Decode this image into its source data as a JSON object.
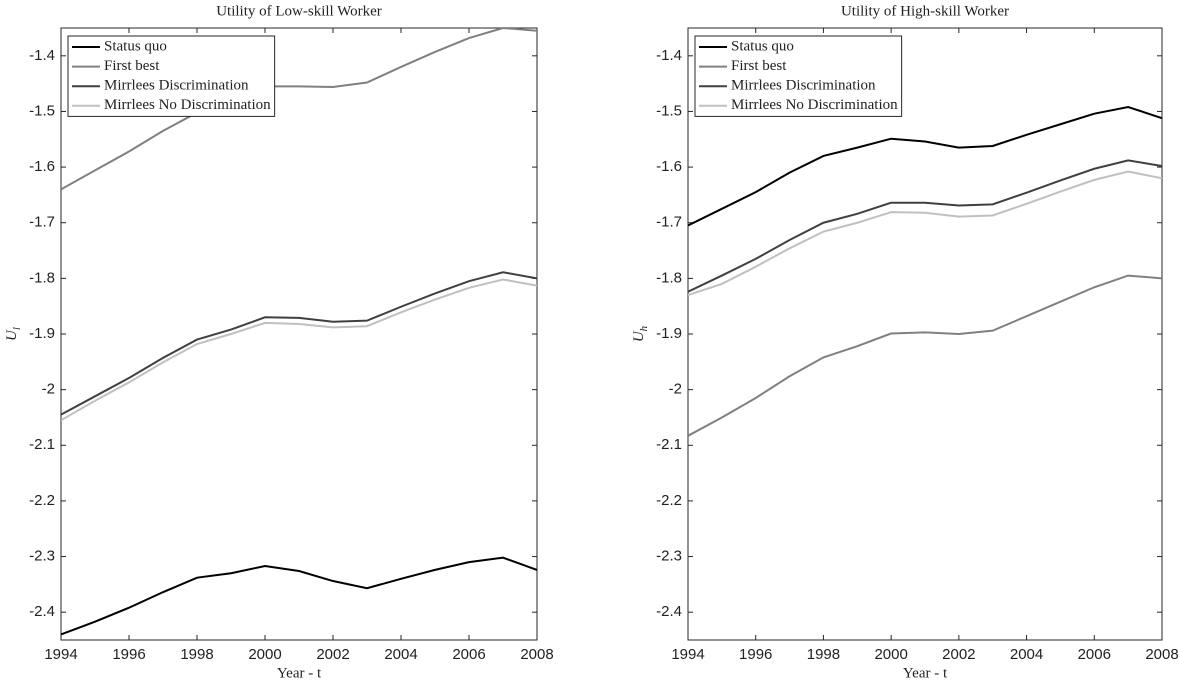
{
  "chart_data": [
    {
      "type": "line",
      "title": "Utility of Low-skill Worker",
      "xlabel": "Year - t",
      "ylabel": "U",
      "ylabel_subscript": "l",
      "x": [
        1994,
        1995,
        1996,
        1997,
        1998,
        1999,
        2000,
        2001,
        2002,
        2003,
        2004,
        2005,
        2006,
        2007,
        2008
      ],
      "xlim": [
        1994,
        2008
      ],
      "xticks": [
        1994,
        1996,
        1998,
        2000,
        2002,
        2004,
        2006,
        2008
      ],
      "ylim": [
        -2.45,
        -1.35
      ],
      "yticks": [
        -2.4,
        -2.3,
        -2.2,
        -2.1,
        -2,
        -1.9,
        -1.8,
        -1.7,
        -1.6,
        -1.5,
        -1.4
      ],
      "legend": "upper-left",
      "series": [
        {
          "name": "Status quo",
          "color": "#000000",
          "values": [
            -2.44,
            -2.417,
            -2.392,
            -2.364,
            -2.338,
            -2.33,
            -2.317,
            -2.326,
            -2.344,
            -2.357,
            -2.34,
            -2.324,
            -2.31,
            -2.302,
            -2.324
          ]
        },
        {
          "name": "First best",
          "color": "#808080",
          "values": [
            -1.64,
            -1.606,
            -1.572,
            -1.535,
            -1.502,
            -1.48,
            -1.455,
            -1.455,
            -1.456,
            -1.448,
            -1.42,
            -1.393,
            -1.368,
            -1.35,
            -1.355
          ]
        },
        {
          "name": "Mirrlees Discrimination",
          "color": "#404040",
          "values": [
            -2.045,
            -2.012,
            -1.979,
            -1.943,
            -1.91,
            -1.892,
            -1.87,
            -1.871,
            -1.878,
            -1.876,
            -1.851,
            -1.827,
            -1.805,
            -1.789,
            -1.8
          ]
        },
        {
          "name": "Mirrlees No Discrimination",
          "color": "#c0c0c0",
          "values": [
            -2.055,
            -2.02,
            -1.987,
            -1.951,
            -1.918,
            -1.9,
            -1.88,
            -1.882,
            -1.888,
            -1.886,
            -1.861,
            -1.838,
            -1.817,
            -1.802,
            -1.813
          ]
        }
      ]
    },
    {
      "type": "line",
      "title": "Utility of High-skill Worker",
      "xlabel": "Year - t",
      "ylabel": "U",
      "ylabel_subscript": "h",
      "x": [
        1994,
        1995,
        1996,
        1997,
        1998,
        1999,
        2000,
        2001,
        2002,
        2003,
        2004,
        2005,
        2006,
        2007,
        2008
      ],
      "xlim": [
        1994,
        2008
      ],
      "xticks": [
        1994,
        1996,
        1998,
        2000,
        2002,
        2004,
        2006,
        2008
      ],
      "ylim": [
        -2.45,
        -1.35
      ],
      "yticks": [
        -2.4,
        -2.3,
        -2.2,
        -2.1,
        -2,
        -1.9,
        -1.8,
        -1.7,
        -1.6,
        -1.5,
        -1.4
      ],
      "legend": "upper-left",
      "series": [
        {
          "name": "Status quo",
          "color": "#000000",
          "values": [
            -1.705,
            -1.675,
            -1.645,
            -1.61,
            -1.58,
            -1.565,
            -1.549,
            -1.554,
            -1.565,
            -1.562,
            -1.542,
            -1.523,
            -1.504,
            -1.492,
            -1.512
          ]
        },
        {
          "name": "First best",
          "color": "#808080",
          "values": [
            -2.083,
            -2.05,
            -2.015,
            -1.976,
            -1.942,
            -1.922,
            -1.899,
            -1.897,
            -1.9,
            -1.894,
            -1.868,
            -1.842,
            -1.816,
            -1.795,
            -1.8
          ]
        },
        {
          "name": "Mirrlees Discrimination",
          "color": "#404040",
          "values": [
            -1.824,
            -1.795,
            -1.765,
            -1.731,
            -1.7,
            -1.684,
            -1.664,
            -1.664,
            -1.669,
            -1.667,
            -1.646,
            -1.624,
            -1.603,
            -1.588,
            -1.598
          ]
        },
        {
          "name": "Mirrlees No Discrimination",
          "color": "#c0c0c0",
          "values": [
            -1.83,
            -1.81,
            -1.779,
            -1.746,
            -1.716,
            -1.7,
            -1.681,
            -1.682,
            -1.689,
            -1.687,
            -1.666,
            -1.644,
            -1.623,
            -1.608,
            -1.62
          ]
        }
      ]
    }
  ]
}
